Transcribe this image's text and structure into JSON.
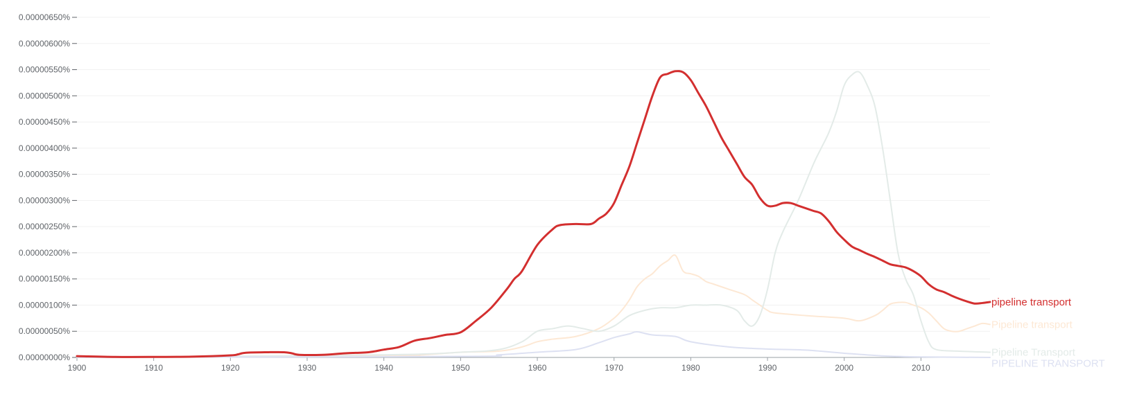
{
  "chart_data": {
    "type": "line",
    "title": "",
    "xlabel": "",
    "ylabel": "",
    "xlim": [
      1900,
      2019
    ],
    "ylim": [
      0,
      6.5e-06
    ],
    "grid": true,
    "y_ticks": [
      {
        "value": 6.5e-06,
        "label": "0.00000650%"
      },
      {
        "value": 6e-06,
        "label": "0.00000600%"
      },
      {
        "value": 5.5e-06,
        "label": "0.00000550%"
      },
      {
        "value": 5e-06,
        "label": "0.00000500%"
      },
      {
        "value": 4.5e-06,
        "label": "0.00000450%"
      },
      {
        "value": 4e-06,
        "label": "0.00000400%"
      },
      {
        "value": 3.5e-06,
        "label": "0.00000350%"
      },
      {
        "value": 3e-06,
        "label": "0.00000300%"
      },
      {
        "value": 2.5e-06,
        "label": "0.00000250%"
      },
      {
        "value": 2e-06,
        "label": "0.00000200%"
      },
      {
        "value": 1.5e-06,
        "label": "0.00000150%"
      },
      {
        "value": 1e-06,
        "label": "0.00000100%"
      },
      {
        "value": 5e-07,
        "label": "0.00000050%"
      },
      {
        "value": 0.0,
        "label": "0.00000000%"
      }
    ],
    "x_ticks": [
      {
        "value": 1900,
        "label": "1900"
      },
      {
        "value": 1910,
        "label": "1910"
      },
      {
        "value": 1920,
        "label": "1920"
      },
      {
        "value": 1930,
        "label": "1930"
      },
      {
        "value": 1940,
        "label": "1940"
      },
      {
        "value": 1950,
        "label": "1950"
      },
      {
        "value": 1960,
        "label": "1960"
      },
      {
        "value": 1970,
        "label": "1970"
      },
      {
        "value": 1980,
        "label": "1980"
      },
      {
        "value": 1990,
        "label": "1990"
      },
      {
        "value": 2000,
        "label": "2000"
      },
      {
        "value": 2010,
        "label": "2010"
      }
    ],
    "series": [
      {
        "name": "pipeline transport",
        "color": "#d32f2f",
        "emphasis": true,
        "x": [
          1900,
          1905,
          1910,
          1915,
          1920,
          1921,
          1922,
          1925,
          1927,
          1928,
          1929,
          1932,
          1935,
          1938,
          1940,
          1942,
          1944,
          1946,
          1948,
          1950,
          1952,
          1954,
          1956,
          1957,
          1958,
          1960,
          1962,
          1963,
          1965,
          1967,
          1968,
          1969,
          1970,
          1971,
          1972,
          1973,
          1974,
          1975,
          1976,
          1977,
          1978,
          1979,
          1980,
          1981,
          1982,
          1983,
          1984,
          1985,
          1986,
          1987,
          1988,
          1989,
          1990,
          1991,
          1992,
          1993,
          1994,
          1995,
          1996,
          1997,
          1998,
          1999,
          2000,
          2001,
          2002,
          2003,
          2004,
          2005,
          2006,
          2007,
          2008,
          2009,
          2010,
          2011,
          2012,
          2013,
          2014,
          2015,
          2016,
          2017,
          2018,
          2019
        ],
        "y": [
          2.5e-08,
          1e-08,
          1e-08,
          1.5e-08,
          4e-08,
          6e-08,
          9e-08,
          1e-07,
          1e-07,
          8e-08,
          5e-08,
          5e-08,
          8e-08,
          1e-07,
          1.5e-07,
          2e-07,
          3.2e-07,
          3.7e-07,
          4.3e-07,
          4.8e-07,
          7e-07,
          9.5e-07,
          1.3e-06,
          1.5e-06,
          1.65e-06,
          2.15e-06,
          2.45e-06,
          2.53e-06,
          2.55e-06,
          2.55e-06,
          2.65e-06,
          2.75e-06,
          2.95e-06,
          3.3e-06,
          3.65e-06,
          4.1e-06,
          4.55e-06,
          5e-06,
          5.35e-06,
          5.42e-06,
          5.47e-06,
          5.45e-06,
          5.3e-06,
          5.05e-06,
          4.8e-06,
          4.5e-06,
          4.2e-06,
          3.95e-06,
          3.7e-06,
          3.45e-06,
          3.3e-06,
          3.05e-06,
          2.9e-06,
          2.9e-06,
          2.95e-06,
          2.95e-06,
          2.9e-06,
          2.85e-06,
          2.8e-06,
          2.75e-06,
          2.6e-06,
          2.4e-06,
          2.25e-06,
          2.12e-06,
          2.05e-06,
          1.98e-06,
          1.92e-06,
          1.85e-06,
          1.78e-06,
          1.75e-06,
          1.72e-06,
          1.65e-06,
          1.55e-06,
          1.4e-06,
          1.3e-06,
          1.25e-06,
          1.18e-06,
          1.12e-06,
          1.07e-06,
          1.03e-06,
          1.04e-06,
          1.06e-06
        ]
      },
      {
        "name": "Pipeline transport",
        "color": "#fde8d4",
        "emphasis": false,
        "x": [
          1900,
          1940,
          1945,
          1950,
          1955,
          1958,
          1960,
          1962,
          1965,
          1968,
          1970,
          1971,
          1972,
          1973,
          1974,
          1975,
          1976,
          1977,
          1978,
          1979,
          1980,
          1981,
          1982,
          1983,
          1985,
          1987,
          1988,
          1989,
          1990,
          1991,
          1995,
          2000,
          2002,
          2004,
          2005,
          2006,
          2007,
          2008,
          2009,
          2010,
          2011,
          2012,
          2013,
          2014,
          2015,
          2016,
          2017,
          2018,
          2019
        ],
        "y": [
          0,
          3e-08,
          5e-08,
          1e-07,
          1.2e-07,
          2e-07,
          3e-07,
          3.5e-07,
          4e-07,
          5.5e-07,
          7.5e-07,
          9e-07,
          1.1e-06,
          1.35e-06,
          1.5e-06,
          1.6e-06,
          1.75e-06,
          1.85e-06,
          1.95e-06,
          1.65e-06,
          1.6e-06,
          1.55e-06,
          1.45e-06,
          1.4e-06,
          1.3e-06,
          1.2e-06,
          1.1e-06,
          1e-06,
          9e-07,
          8.5e-07,
          8e-07,
          7.5e-07,
          7e-07,
          8e-07,
          9e-07,
          1.02e-06,
          1.05e-06,
          1.05e-06,
          1e-06,
          9.5e-07,
          8.5e-07,
          7e-07,
          5.5e-07,
          5e-07,
          5e-07,
          5.5e-07,
          6e-07,
          6.5e-07,
          6.3e-07
        ]
      },
      {
        "name": "Pipeline Transport",
        "color": "#e3ebe8",
        "emphasis": false,
        "x": [
          1900,
          1940,
          1950,
          1955,
          1958,
          1960,
          1962,
          1964,
          1966,
          1968,
          1970,
          1972,
          1974,
          1976,
          1978,
          1980,
          1982,
          1984,
          1986,
          1987,
          1988,
          1989,
          1990,
          1991,
          1992,
          1994,
          1996,
          1997,
          1998,
          1999,
          2000,
          2001,
          2002,
          2003,
          2004,
          2005,
          2006,
          2007,
          2008,
          2009,
          2010,
          2011,
          2012,
          2015,
          2019
        ],
        "y": [
          0,
          5e-08,
          1e-07,
          1.5e-07,
          3e-07,
          5e-07,
          5.5e-07,
          6e-07,
          5.5e-07,
          5e-07,
          6e-07,
          8e-07,
          9e-07,
          9.5e-07,
          9.5e-07,
          1e-06,
          1e-06,
          1e-06,
          9e-07,
          7e-07,
          6e-07,
          8e-07,
          1.3e-06,
          2e-06,
          2.4e-06,
          3e-06,
          3.7e-06,
          4e-06,
          4.3e-06,
          4.7e-06,
          5.2e-06,
          5.4e-06,
          5.45e-06,
          5.2e-06,
          4.8e-06,
          4e-06,
          3e-06,
          2e-06,
          1.5e-06,
          1.2e-06,
          7e-07,
          3e-07,
          1.5e-07,
          1.2e-07,
          1e-07
        ]
      },
      {
        "name": "PIPELINE TRANSPORT",
        "color": "#dde1f2",
        "emphasis": false,
        "x": [
          1900,
          1950,
          1955,
          1960,
          1965,
          1968,
          1970,
          1972,
          1973,
          1975,
          1978,
          1980,
          1985,
          1990,
          1995,
          2000,
          2005,
          2010,
          2019
        ],
        "y": [
          0,
          2e-08,
          5e-08,
          1e-07,
          1.5e-07,
          2.8e-07,
          3.8e-07,
          4.5e-07,
          4.9e-07,
          4.3e-07,
          4e-07,
          3e-07,
          2e-07,
          1.6e-07,
          1.4e-07,
          8e-08,
          3e-08,
          1e-08,
          0
        ]
      }
    ]
  }
}
